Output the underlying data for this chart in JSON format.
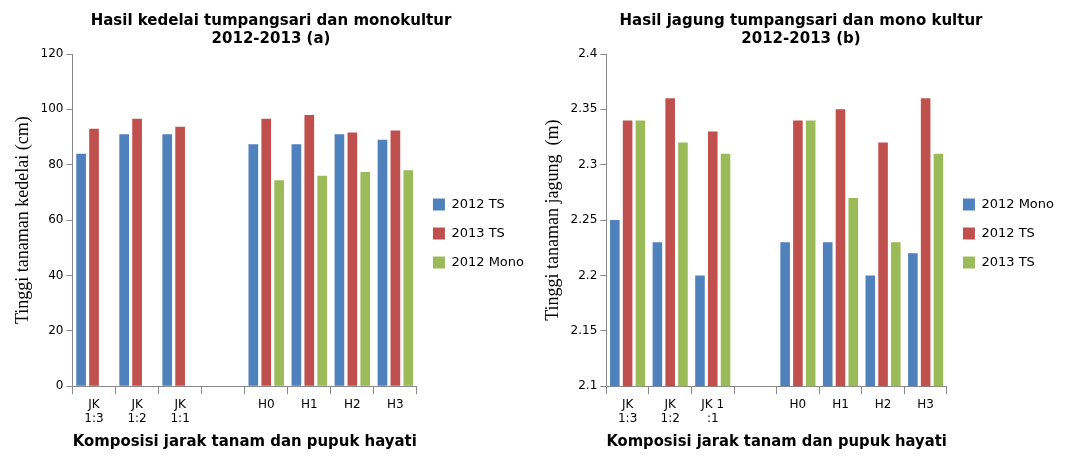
{
  "chart_data": [
    {
      "type": "bar",
      "title": "Hasil kedelai tumpangsari dan monokultur\n2012-2013 (a)",
      "xlabel": "Komposisi jarak tanam dan pupuk hayati",
      "ylabel": "Tinggi tanaman kedelai (cm)",
      "categories": [
        "JK\n1:3",
        "JK\n1:2",
        "JK\n1:1",
        null,
        "H0",
        "H1",
        "H2",
        "H3"
      ],
      "series": [
        {
          "name": "2012 TS",
          "color": "#4f81bd",
          "values": [
            84,
            91,
            91,
            null,
            87.4,
            87.4,
            91,
            89
          ]
        },
        {
          "name": "2013 TS",
          "color": "#c0504d",
          "values": [
            93,
            96.6,
            93.7,
            null,
            96.6,
            98,
            91.6,
            92.4
          ]
        },
        {
          "name": "2012 Mono",
          "color": "#9bbb59",
          "values": [
            null,
            null,
            null,
            null,
            74.4,
            76,
            77.4,
            78
          ]
        }
      ],
      "ylim": [
        0,
        120
      ],
      "yticks": [
        0,
        20,
        40,
        60,
        80,
        100,
        120
      ],
      "grid": false,
      "legend": "right"
    },
    {
      "type": "bar",
      "title": "Hasil jagung tumpangsari dan mono kultur\n2012-2013 (b)",
      "xlabel": "Komposisi jarak tanam dan pupuk hayati",
      "ylabel": "Tinggi tanaman jagung  (m)",
      "categories": [
        "JK\n1:3",
        "JK\n1:2",
        "JK 1\n:1",
        null,
        "H0",
        "H1",
        "H2",
        "H3"
      ],
      "series": [
        {
          "name": "2012 Mono",
          "color": "#4f81bd",
          "values": [
            2.25,
            2.23,
            2.2,
            null,
            2.23,
            2.23,
            2.2,
            2.22
          ]
        },
        {
          "name": "2012 TS",
          "color": "#c0504d",
          "values": [
            2.34,
            2.36,
            2.33,
            null,
            2.34,
            2.35,
            2.32,
            2.36
          ]
        },
        {
          "name": "2013 TS",
          "color": "#9bbb59",
          "values": [
            2.34,
            2.32,
            2.31,
            null,
            2.34,
            2.27,
            2.23,
            2.31
          ]
        }
      ],
      "ylim": [
        2.1,
        2.4
      ],
      "yticks": [
        2.1,
        2.15,
        2.2,
        2.25,
        2.3,
        2.35,
        2.4
      ],
      "grid": false,
      "legend": "right"
    }
  ]
}
